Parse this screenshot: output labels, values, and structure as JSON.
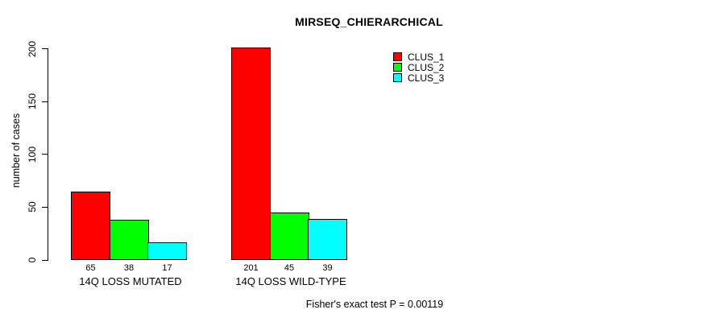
{
  "chart_data": {
    "type": "bar",
    "title": "MIRSEQ_CHIERARCHICAL",
    "ylabel": "number of cases",
    "xlabel": "",
    "ylim": [
      0,
      200
    ],
    "yticks": [
      0,
      50,
      100,
      150,
      200
    ],
    "grid": false,
    "legend_position": "top-right",
    "categories": [
      "14Q LOSS MUTATED",
      "14Q LOSS WILD-TYPE"
    ],
    "series": [
      {
        "name": "CLUS_1",
        "color": "#FF0000",
        "values": [
          65,
          201
        ]
      },
      {
        "name": "CLUS_2",
        "color": "#00FF00",
        "values": [
          38,
          45
        ]
      },
      {
        "name": "CLUS_3",
        "color": "#00FFFF",
        "values": [
          17,
          39
        ]
      }
    ],
    "bar_value_labels": [
      [
        65,
        38,
        17
      ],
      [
        201,
        45,
        39
      ]
    ],
    "bar_border_color": "#000000",
    "annotation": "Fisher's exact test P = 0.00119"
  }
}
